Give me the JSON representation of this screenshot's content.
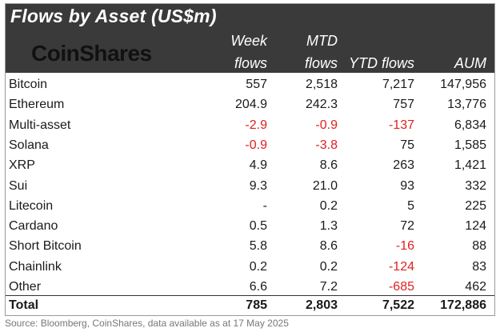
{
  "title": "Flows by Asset (US$m)",
  "logo": "CoinShares",
  "columns": {
    "week_line1": "Week",
    "week_line2": "flows",
    "mtd_line1": "MTD",
    "mtd_line2": "flows",
    "ytd": "YTD flows",
    "aum": "AUM"
  },
  "rows": [
    {
      "asset": "Bitcoin",
      "week": "557",
      "mtd": "2,518",
      "ytd": "7,217",
      "aum": "147,956"
    },
    {
      "asset": "Ethereum",
      "week": "204.9",
      "mtd": "242.3",
      "ytd": "757",
      "aum": "13,776"
    },
    {
      "asset": "Multi-asset",
      "week": "-2.9",
      "mtd": "-0.9",
      "ytd": "-137",
      "aum": "6,834"
    },
    {
      "asset": "Solana",
      "week": "-0.9",
      "mtd": "-3.8",
      "ytd": "75",
      "aum": "1,585"
    },
    {
      "asset": "XRP",
      "week": "4.9",
      "mtd": "8.6",
      "ytd": "263",
      "aum": "1,421"
    },
    {
      "asset": "Sui",
      "week": "9.3",
      "mtd": "21.0",
      "ytd": "93",
      "aum": "332"
    },
    {
      "asset": "Litecoin",
      "week": "-",
      "mtd": "0.2",
      "ytd": "5",
      "aum": "225"
    },
    {
      "asset": "Cardano",
      "week": "0.5",
      "mtd": "1.3",
      "ytd": "72",
      "aum": "124"
    },
    {
      "asset": "Short Bitcoin",
      "week": "5.8",
      "mtd": "8.6",
      "ytd": "-16",
      "aum": "88"
    },
    {
      "asset": "Chainlink",
      "week": "0.2",
      "mtd": "0.2",
      "ytd": "-124",
      "aum": "83"
    },
    {
      "asset": "Other",
      "week": "6.6",
      "mtd": "7.2",
      "ytd": "-685",
      "aum": "462"
    }
  ],
  "total": {
    "asset": "Total",
    "week": "785",
    "mtd": "2,803",
    "ytd": "7,522",
    "aum": "172,886"
  },
  "source": "Source: Bloomberg, CoinShares, data available as at 17 May 2025",
  "colors": {
    "header_bg": "#3a3a3a",
    "negative": "#e02020"
  }
}
